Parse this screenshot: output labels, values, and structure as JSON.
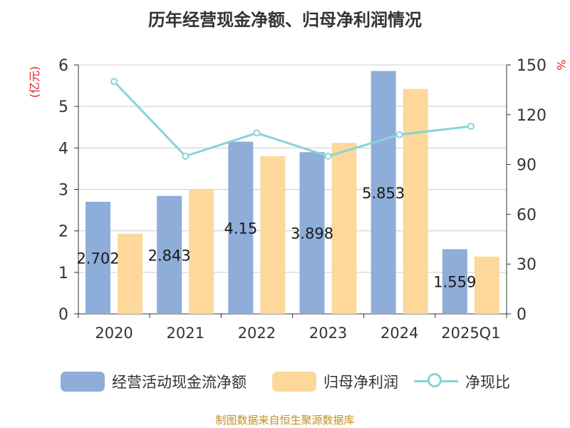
{
  "chart_data": {
    "type": "bar",
    "title": "历年经营现金净额、归母净利润情况",
    "categories": [
      "2020",
      "2021",
      "2022",
      "2023",
      "2024",
      "2025Q1"
    ],
    "series": [
      {
        "name": "经营活动现金流净额",
        "type": "bar",
        "axis": "left",
        "color": "#8eadd9",
        "values": [
          2.702,
          2.843,
          4.15,
          3.898,
          5.853,
          1.559
        ],
        "labels": [
          "2.702",
          "2.843",
          "4.15",
          "3.898",
          "5.853",
          "1.559"
        ]
      },
      {
        "name": "归母净利润",
        "type": "bar",
        "axis": "left",
        "color": "#fdd89a",
        "values": [
          1.93,
          3.0,
          3.8,
          4.12,
          5.42,
          1.38
        ]
      },
      {
        "name": "净现比",
        "type": "line",
        "axis": "right",
        "color": "#86d4d6",
        "values": [
          140,
          95,
          109,
          95,
          108,
          113
        ]
      }
    ],
    "ylabel": "(亿元)",
    "y2label": "%",
    "ylim": [
      0,
      6
    ],
    "y2lim": [
      0,
      150
    ],
    "yticks": [
      "0",
      "1",
      "2",
      "3",
      "4",
      "5",
      "6"
    ],
    "y2ticks": [
      "0",
      "30",
      "60",
      "90",
      "120",
      "150"
    ],
    "grid": true,
    "legend_position": "bottom"
  },
  "source": "制图数据来自恒生聚源数据库"
}
